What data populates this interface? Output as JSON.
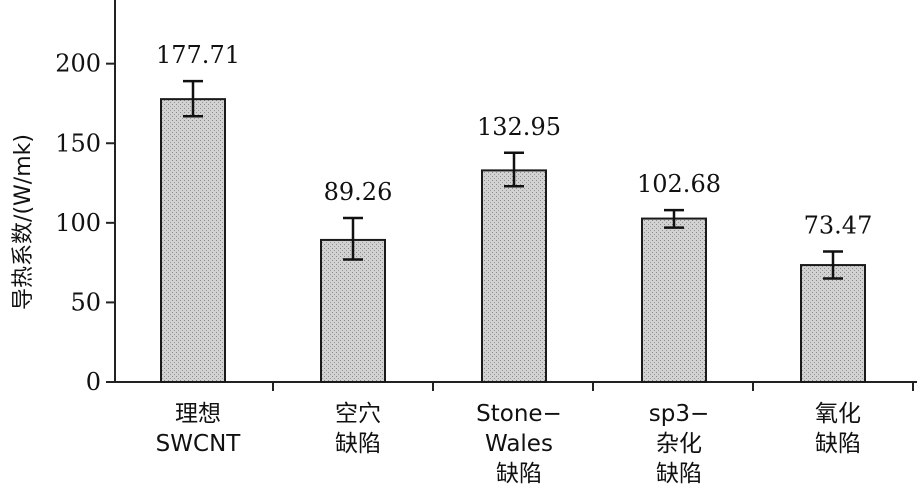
{
  "chart_data": {
    "type": "bar",
    "title": "",
    "xlabel": "",
    "ylabel": "导热系数/(W/mk)",
    "ylim": [
      0,
      240
    ],
    "yticks": [
      0,
      50,
      100,
      150,
      200
    ],
    "grid": false,
    "legend": "none",
    "bar_color": "#c8c8c8",
    "categories": [
      [
        "理想",
        "SWCNT"
      ],
      [
        "空穴",
        "缺陷"
      ],
      [
        "Stone−",
        "Wales",
        "缺陷"
      ],
      [
        "sp3−",
        "杂化",
        "缺陷"
      ],
      [
        "氧化",
        "缺陷"
      ]
    ],
    "values": [
      177.71,
      89.26,
      132.95,
      102.68,
      73.47
    ],
    "value_labels": [
      "177.71",
      "89.26",
      "132.95",
      "102.68",
      "73.47"
    ],
    "error": [
      [
        167,
        189
      ],
      [
        77,
        103
      ],
      [
        123,
        144
      ],
      [
        97,
        108
      ],
      [
        65,
        82
      ]
    ]
  }
}
